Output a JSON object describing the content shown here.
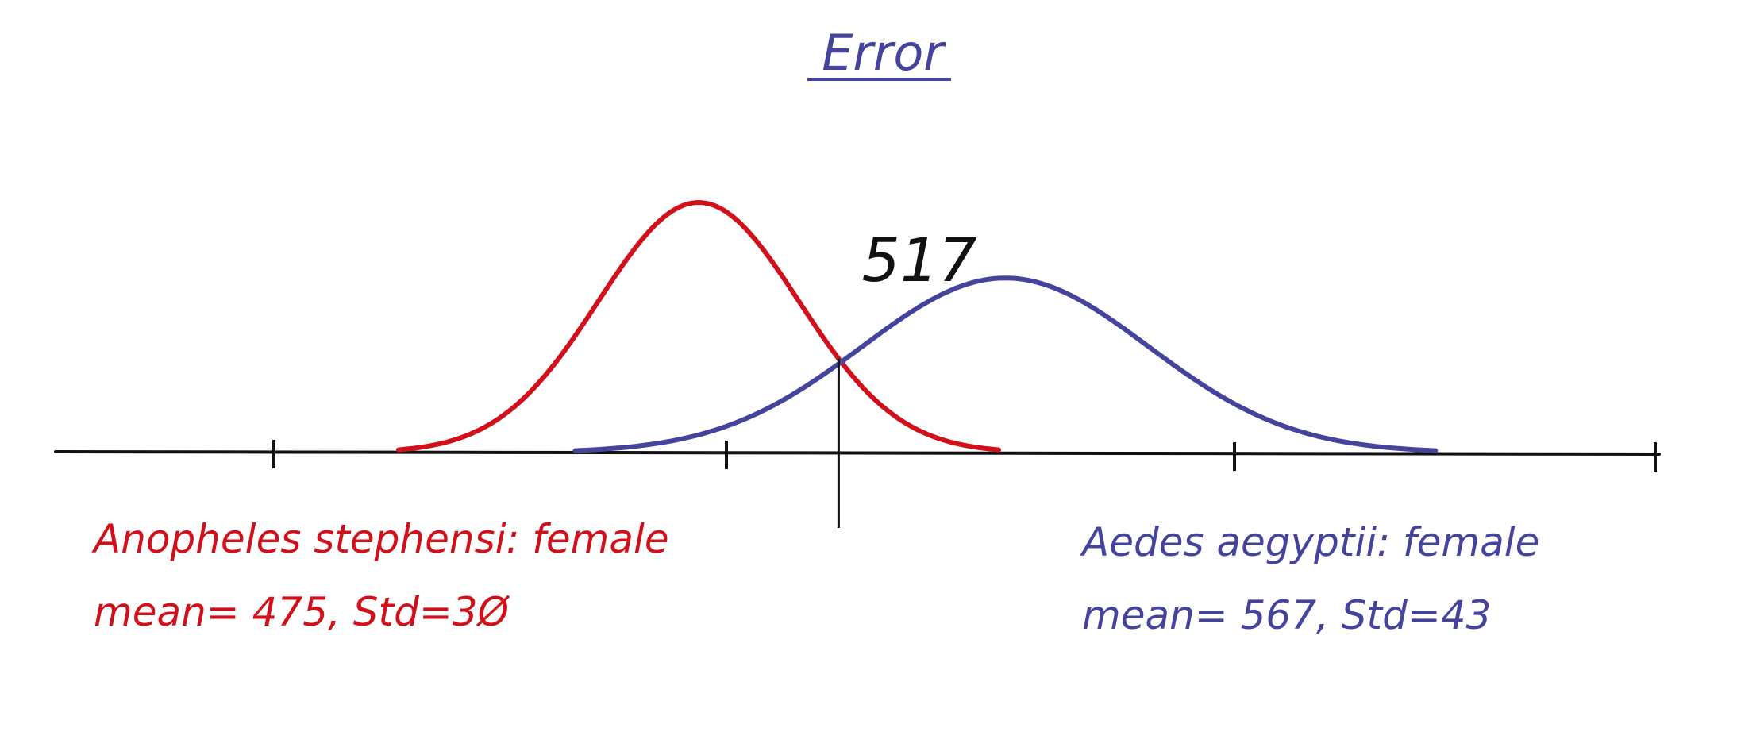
{
  "title": "Error",
  "threshold_label": "517",
  "colors": {
    "red_series": "#d0111b",
    "blue_series": "#45449d",
    "axis": "#111111",
    "background": "#ffffff"
  },
  "chart_data": {
    "type": "line",
    "threshold": 517,
    "series": [
      {
        "label": "Anopheles stephensi: female",
        "stats": "mean= 475, Std=3Ø",
        "mean": 475,
        "std": 30,
        "color": "#d0111b"
      },
      {
        "label": "Aedes aegyptii: female",
        "stats": "mean= 567, Std=43",
        "mean": 567,
        "std": 43,
        "color": "#45449d"
      }
    ]
  }
}
